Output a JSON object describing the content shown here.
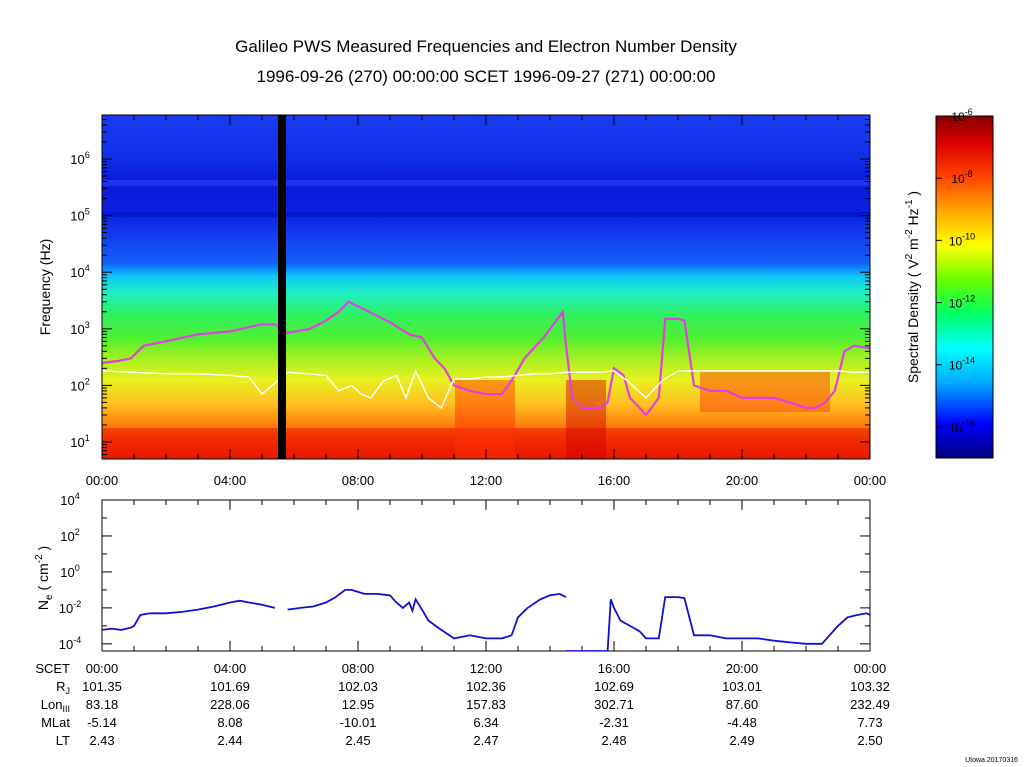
{
  "title": {
    "line1": "Galileo PWS Measured Frequencies and Electron Number Density",
    "line2": "1996-09-26 (270) 00:00:00 SCET 1996-09-27 (271) 00:00:00"
  },
  "credit": "UIowa 20170316",
  "time_ticks": [
    "00:00",
    "04:00",
    "08:00",
    "12:00",
    "16:00",
    "20:00",
    "00:00"
  ],
  "chart_data": [
    {
      "type": "heatmap",
      "name": "spectrogram",
      "xlabel": "",
      "ylabel": "Frequency (Hz)",
      "yscale": "log",
      "xlim_hours": [
        0,
        24
      ],
      "ylim": [
        5,
        6000000
      ],
      "ytick_values": [
        10,
        100,
        1000,
        10000,
        100000,
        1000000
      ],
      "ytick_labels": [
        "10",
        "10",
        "10",
        "10",
        "10",
        "10"
      ],
      "ytick_exponents": [
        "1",
        "2",
        "3",
        "4",
        "5",
        "6"
      ],
      "data_gap_hours": [
        5.5,
        5.75
      ],
      "colorbar": {
        "label": "Spectral Density ( V",
        "label_sup1": "2",
        "label_mid": " m",
        "label_sup2": "-2",
        "label_mid2": " Hz",
        "label_sup3": "-1",
        "label_end": " )",
        "range": [
          1e-17,
          1e-06
        ],
        "tick_labels": [
          "10",
          "10",
          "10",
          "10",
          "10",
          "10"
        ],
        "tick_exponents": [
          "-6",
          "-8",
          "-10",
          "-12",
          "-14",
          "-16"
        ],
        "tick_values_log": [
          -6,
          -8,
          -10,
          -12,
          -14,
          -16
        ],
        "colors": [
          "#00007a",
          "#0000ff",
          "#00aaff",
          "#00ffff",
          "#00ff66",
          "#66ff00",
          "#ffff00",
          "#ffaa00",
          "#ff4400",
          "#dd0000",
          "#880000"
        ]
      },
      "series": [
        {
          "name": "magenta trace",
          "color": "#e040e0",
          "hours": [
            0.0,
            0.5,
            0.9,
            1.3,
            2.0,
            3.0,
            4.0,
            5.0,
            5.4,
            5.8,
            6.5,
            7.0,
            7.4,
            7.7,
            8.0,
            8.5,
            9.0,
            9.6,
            10.0,
            10.4,
            10.7,
            11.0,
            11.5,
            12.0,
            12.5,
            12.9,
            13.2,
            13.8,
            14.4,
            14.5,
            14.7,
            15.0,
            15.3,
            15.6,
            15.8,
            16.0,
            16.3,
            16.5,
            16.8,
            17.0,
            17.4,
            17.6,
            18.0,
            18.2,
            18.5,
            19.0,
            19.5,
            20.0,
            20.5,
            21.0,
            21.5,
            22.0,
            22.3,
            22.6,
            22.9,
            23.2,
            23.5,
            24.0
          ],
          "values": [
            250,
            270,
            300,
            500,
            600,
            800,
            900,
            1200,
            1200,
            850,
            1000,
            1400,
            2000,
            3000,
            2500,
            1800,
            1300,
            800,
            700,
            300,
            200,
            100,
            80,
            70,
            70,
            150,
            300,
            700,
            2000,
            500,
            60,
            40,
            40,
            40,
            50,
            200,
            150,
            60,
            40,
            30,
            60,
            1500,
            1500,
            1400,
            100,
            80,
            80,
            60,
            60,
            60,
            50,
            40,
            40,
            50,
            80,
            400,
            500,
            450
          ]
        },
        {
          "name": "white trace",
          "color": "#ffffff",
          "hours": [
            0.0,
            1.0,
            2.0,
            3.0,
            4.0,
            4.6,
            5.0,
            5.8,
            6.5,
            7.0,
            7.4,
            7.8,
            8.1,
            8.4,
            8.8,
            9.2,
            9.5,
            9.8,
            10.2,
            10.6,
            11.0,
            11.5,
            12.0,
            12.5,
            13.0,
            13.5,
            14.0,
            14.5,
            15.0,
            15.5,
            16.0,
            16.5,
            17.0,
            17.5,
            18.0,
            18.5,
            19.0,
            20.0,
            21.0,
            22.0,
            23.0,
            23.5,
            24.0
          ],
          "values": [
            180,
            170,
            160,
            160,
            150,
            140,
            70,
            170,
            160,
            150,
            80,
            100,
            70,
            60,
            120,
            150,
            60,
            180,
            60,
            40,
            130,
            130,
            140,
            140,
            150,
            160,
            160,
            170,
            170,
            170,
            180,
            110,
            60,
            120,
            180,
            180,
            180,
            180,
            180,
            180,
            180,
            170,
            170
          ]
        }
      ]
    },
    {
      "type": "line",
      "name": "electron number density",
      "ylabel": "N",
      "ylabel_sub": "e",
      "ylabel_rest": " ( cm",
      "ylabel_sup": "-2",
      "ylabel_end": " )",
      "yscale": "log",
      "xlim_hours": [
        0,
        24
      ],
      "ylim": [
        4e-05,
        10000
      ],
      "ytick_values": [
        0.0001,
        0.01,
        1,
        100,
        10000
      ],
      "ytick_labels": [
        "10",
        "10",
        "10",
        "10",
        "10"
      ],
      "ytick_exponents": [
        "-4",
        "-2",
        "0",
        "2",
        "4"
      ],
      "series": [
        {
          "name": "Ne",
          "color": "#1010d0",
          "segments": [
            {
              "hours": [
                0.0,
                0.3,
                0.6,
                0.9,
                1.0,
                1.2,
                1.5,
                2.0,
                2.5,
                3.0,
                3.5,
                4.0,
                4.3,
                4.6,
                5.0,
                5.4
              ],
              "values": [
                0.0006,
                0.0007,
                0.0006,
                0.0008,
                0.001,
                0.004,
                0.005,
                0.005,
                0.006,
                0.008,
                0.012,
                0.02,
                0.025,
                0.02,
                0.015,
                0.01
              ]
            },
            {
              "hours": [
                5.8,
                6.2,
                6.6,
                7.0,
                7.3,
                7.6,
                7.8,
                8.2,
                8.6,
                9.0,
                9.2,
                9.4,
                9.6,
                9.7,
                9.8,
                10.0,
                10.2,
                10.5,
                11.0,
                11.5,
                12.0,
                12.5,
                12.8,
                13.0,
                13.3,
                13.7,
                14.0,
                14.3,
                14.5
              ],
              "values": [
                0.008,
                0.01,
                0.012,
                0.02,
                0.04,
                0.1,
                0.1,
                0.06,
                0.06,
                0.05,
                0.02,
                0.01,
                0.02,
                0.007,
                0.03,
                0.008,
                0.002,
                0.0008,
                0.0002,
                0.0003,
                0.0002,
                0.0002,
                0.0003,
                0.003,
                0.01,
                0.03,
                0.05,
                0.06,
                0.04
              ]
            },
            {
              "hours": [
                14.5,
                14.7,
                15.0,
                15.5,
                15.8,
                15.9,
                16.0,
                16.2,
                16.5,
                16.8,
                17.0,
                17.2,
                17.4,
                17.6,
                18.0,
                18.2,
                18.5,
                19.0,
                19.5,
                20.0,
                20.5,
                21.0,
                21.5,
                22.0,
                22.5,
                22.8,
                23.0,
                23.3,
                23.6,
                23.9,
                24.0
              ],
              "values": [
                4e-05,
                4e-05,
                4e-05,
                4e-05,
                4e-05,
                0.03,
                0.01,
                0.002,
                0.001,
                0.0005,
                0.0002,
                0.0002,
                0.0002,
                0.04,
                0.04,
                0.035,
                0.0003,
                0.0003,
                0.0002,
                0.0002,
                0.0002,
                0.00015,
                0.00012,
                0.0001,
                0.0001,
                0.0004,
                0.001,
                0.003,
                0.004,
                0.005,
                0.004
              ]
            }
          ]
        }
      ]
    }
  ],
  "ephemeris": {
    "rows": [
      {
        "label": "SCET",
        "label_sub": "",
        "values": [
          "00:00",
          "04:00",
          "08:00",
          "12:00",
          "16:00",
          "20:00",
          "00:00"
        ]
      },
      {
        "label": "R",
        "label_sub": "J",
        "values": [
          "101.35",
          "101.69",
          "102.03",
          "102.36",
          "102.69",
          "103.01",
          "103.32"
        ]
      },
      {
        "label": "Lon",
        "label_sub": "III",
        "values": [
          "83.18",
          "228.06",
          "12.95",
          "157.83",
          "302.71",
          "87.60",
          "232.49"
        ]
      },
      {
        "label": "MLat",
        "label_sub": "",
        "values": [
          "-5.14",
          "8.08",
          "-10.01",
          "6.34",
          "-2.31",
          "-4.48",
          "7.73"
        ]
      },
      {
        "label": "LT",
        "label_sub": "",
        "values": [
          "2.43",
          "2.44",
          "2.45",
          "2.47",
          "2.48",
          "2.49",
          "2.50"
        ]
      }
    ]
  }
}
